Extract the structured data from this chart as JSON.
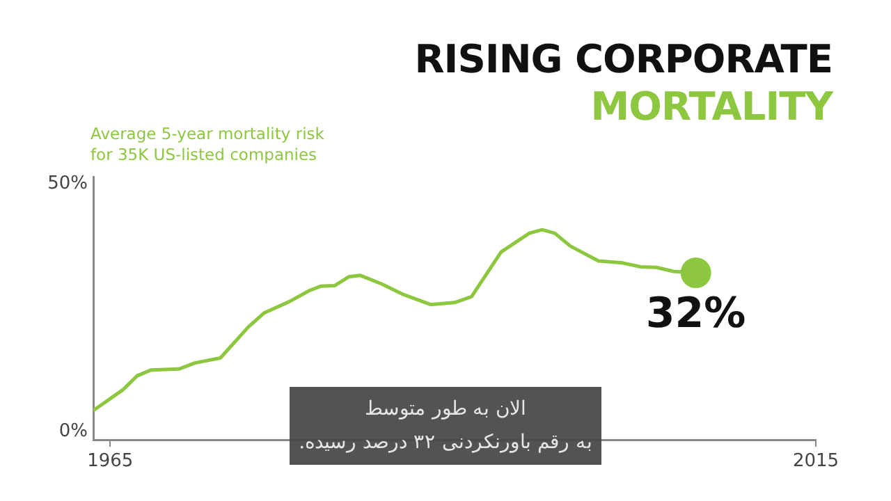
{
  "chart_data": {
    "type": "line",
    "title": "RISING CORPORATE",
    "subtitle": "MORTALITY",
    "ylabel": "Average 5-year mortality risk for 35K US-listed companies",
    "annotations": [
      "الان به طور متوسط",
      "به رقم باورنکردنی ۳۲ درصد رسیده."
    ],
    "xlim": [
      1963.8,
      2015
    ],
    "xticks": [
      1965,
      2015
    ],
    "ylim": [
      -1.7,
      51.4
    ],
    "yticks": [
      {
        "value": 0,
        "label": "0%"
      },
      {
        "value": 50,
        "label": "50%"
      }
    ],
    "grid": false,
    "legend": false,
    "series": [
      {
        "type": "line",
        "color": "#8dc63f",
        "marker": "none",
        "x": [
          1963.8,
          1965.9,
          1966.9,
          1967.9,
          1969.9,
          1971,
          1972.8,
          1974.8,
          1975.9,
          1977.7,
          1979.1,
          1979.9,
          1980.9,
          1981.9,
          1982.7,
          1984.2,
          1985.8,
          1987.7,
          1989.4,
          1990.6,
          1992.7,
          1994.7,
          1995.6,
          1996.5,
          1997.6,
          1999.6,
          2001.3,
          2002.6,
          2003.7,
          2004.9,
          2006.5
        ],
        "values": [
          4.2,
          8.4,
          11.2,
          12.4,
          12.6,
          13.8,
          14.8,
          21.1,
          23.9,
          26.2,
          28.4,
          29.3,
          29.4,
          31.2,
          31.5,
          29.8,
          27.6,
          25.6,
          26.0,
          27.2,
          36.2,
          40.0,
          40.7,
          40.0,
          37.4,
          34.4,
          34.0,
          33.2,
          33.1,
          32.3,
          32
        ]
      },
      {
        "type": "scatter",
        "color": "#8dc63f",
        "marker": "circle",
        "x": [
          2006.5
        ],
        "values": [
          32
        ],
        "value_labels": [
          "32%"
        ]
      }
    ]
  }
}
